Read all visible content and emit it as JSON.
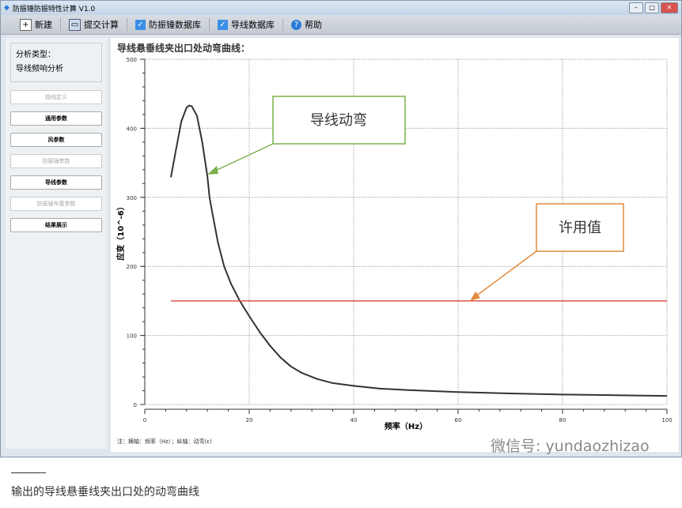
{
  "window": {
    "title": "防振锤防振特性计算 V1.0"
  },
  "toolbar": {
    "items": [
      {
        "label": "新建",
        "icon": "new-file-icon"
      },
      {
        "label": "提交计算",
        "icon": "monitor-icon"
      },
      {
        "label": "防振锤数据库",
        "icon": "database-icon"
      },
      {
        "label": "导线数据库",
        "icon": "database-icon"
      },
      {
        "label": "帮助",
        "icon": "help-icon"
      }
    ]
  },
  "sidebar": {
    "type_label": "分析类型：",
    "type_value": "导线频响分析",
    "buttons": [
      {
        "label": "曲线定义",
        "enabled": false
      },
      {
        "label": "通用参数",
        "enabled": true
      },
      {
        "label": "风参数",
        "enabled": true
      },
      {
        "label": "防振锤参数",
        "enabled": false
      },
      {
        "label": "导线参数",
        "enabled": true
      },
      {
        "label": "防振锤布置参数",
        "enabled": false
      },
      {
        "label": "结果展示",
        "enabled": true
      }
    ]
  },
  "main": {
    "title": "导线悬垂线夹出口处动弯曲线：",
    "note": "注：横轴：频率（Hz）；纵轴：动弯(ε)"
  },
  "chart_data": {
    "type": "line",
    "xlabel": "频率（Hz）",
    "ylabel": "应变（10^-6）",
    "xlim": [
      0,
      100
    ],
    "ylim": [
      0,
      500
    ],
    "xticks": [
      0,
      20,
      40,
      60,
      80,
      100
    ],
    "yticks": [
      0,
      100,
      200,
      300,
      400,
      500
    ],
    "grid": true,
    "series": [
      {
        "color": "#333333",
        "x": [
          5,
          6,
          7,
          8,
          8.5,
          9,
          10,
          11,
          12,
          12.4,
          13,
          14,
          15.2,
          16.5,
          18.2,
          20,
          22,
          24,
          26,
          28,
          30,
          33,
          36,
          40,
          45,
          50,
          60,
          70,
          80,
          90,
          100
        ],
        "y": [
          329,
          370,
          410,
          430,
          433,
          432,
          418,
          380,
          330,
          300,
          275,
          235,
          200,
          175,
          150,
          128,
          105,
          85,
          68,
          55,
          46,
          37,
          31,
          27,
          23,
          21,
          18,
          16,
          14.5,
          13.5,
          12.5
        ]
      },
      {
        "color": "#d9534f",
        "x": [
          5,
          100
        ],
        "y": [
          150,
          150
        ]
      }
    ],
    "annotations": [
      {
        "text": "导线动弯",
        "color": "#7ab04a"
      },
      {
        "text": "许用值",
        "color": "#e08a3c"
      }
    ]
  },
  "watermark": "微信号: yundaozhizao",
  "caption": "输出的导线悬垂线夹出口处的动弯曲线"
}
